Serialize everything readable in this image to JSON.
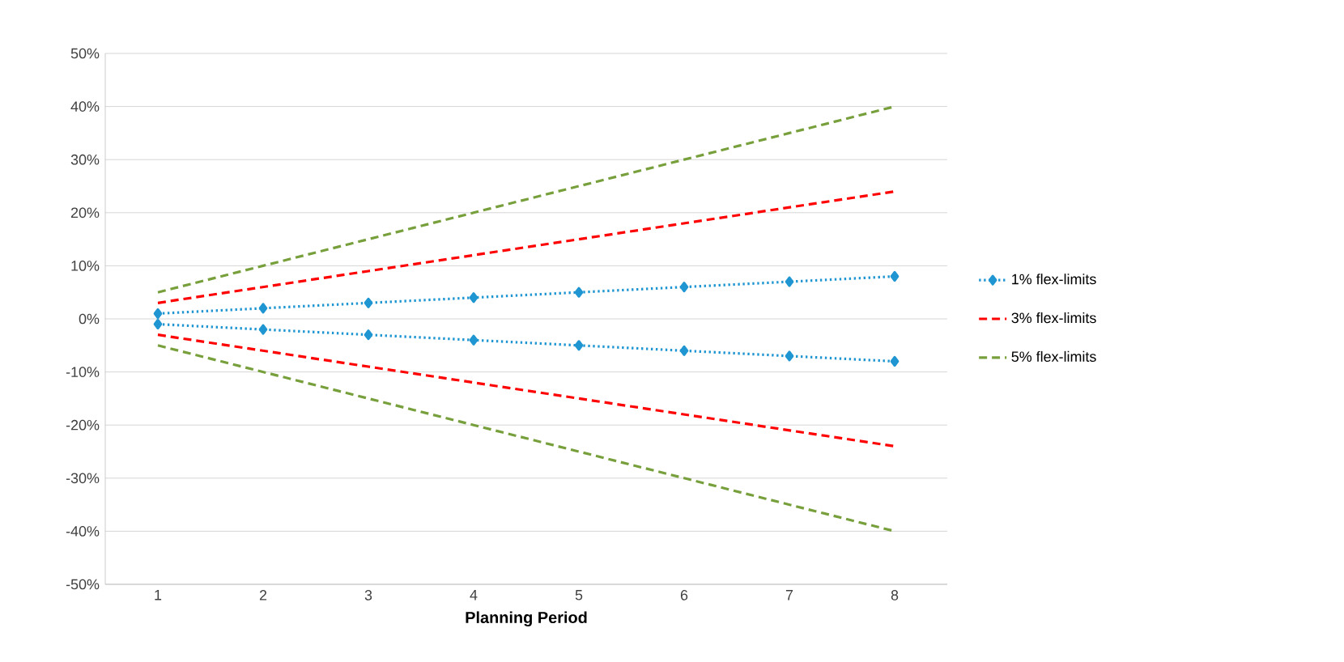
{
  "chart_data": {
    "type": "line",
    "xlabel": "Planning Period",
    "categories": [
      "1",
      "2",
      "3",
      "4",
      "5",
      "6",
      "7",
      "8"
    ],
    "ylim": [
      -50,
      50
    ],
    "yticks": [
      {
        "value": -50,
        "label": "-50%"
      },
      {
        "value": -40,
        "label": "-40%"
      },
      {
        "value": -30,
        "label": "-30%"
      },
      {
        "value": -20,
        "label": "-20%"
      },
      {
        "value": -10,
        "label": "-10%"
      },
      {
        "value": 0,
        "label": "0%"
      },
      {
        "value": 10,
        "label": "10%"
      },
      {
        "value": 20,
        "label": "20%"
      },
      {
        "value": 30,
        "label": "30%"
      },
      {
        "value": 40,
        "label": "40%"
      },
      {
        "value": 50,
        "label": "50%"
      }
    ],
    "grid": "y",
    "legend": "right",
    "series": [
      {
        "name": "1% flex-limits",
        "color": "#1f96d2",
        "line_style": "dotted",
        "marker": "diamond",
        "values": [
          1,
          2,
          3,
          4,
          5,
          6,
          7,
          8
        ]
      },
      {
        "name": "3% flex-limits",
        "color": "#ff0000",
        "line_style": "dashed",
        "marker": "none",
        "values": [
          3,
          6,
          9,
          12,
          15,
          18,
          21,
          24
        ]
      },
      {
        "name": "5% flex-limits",
        "color": "#77a03c",
        "line_style": "dashed",
        "marker": "none",
        "values": [
          5,
          10,
          15,
          20,
          25,
          30,
          35,
          40
        ]
      },
      {
        "color": "#1f96d2",
        "line_style": "dotted",
        "marker": "diamond",
        "values": [
          -1,
          -2,
          -3,
          -4,
          -5,
          -6,
          -7,
          -8
        ]
      },
      {
        "color": "#ff0000",
        "line_style": "dashed",
        "marker": "none",
        "values": [
          -3,
          -6,
          -9,
          -12,
          -15,
          -18,
          -21,
          -24
        ]
      },
      {
        "color": "#77a03c",
        "line_style": "dashed",
        "marker": "none",
        "values": [
          -5,
          -10,
          -15,
          -20,
          -25,
          -30,
          -35,
          -40
        ]
      }
    ]
  }
}
